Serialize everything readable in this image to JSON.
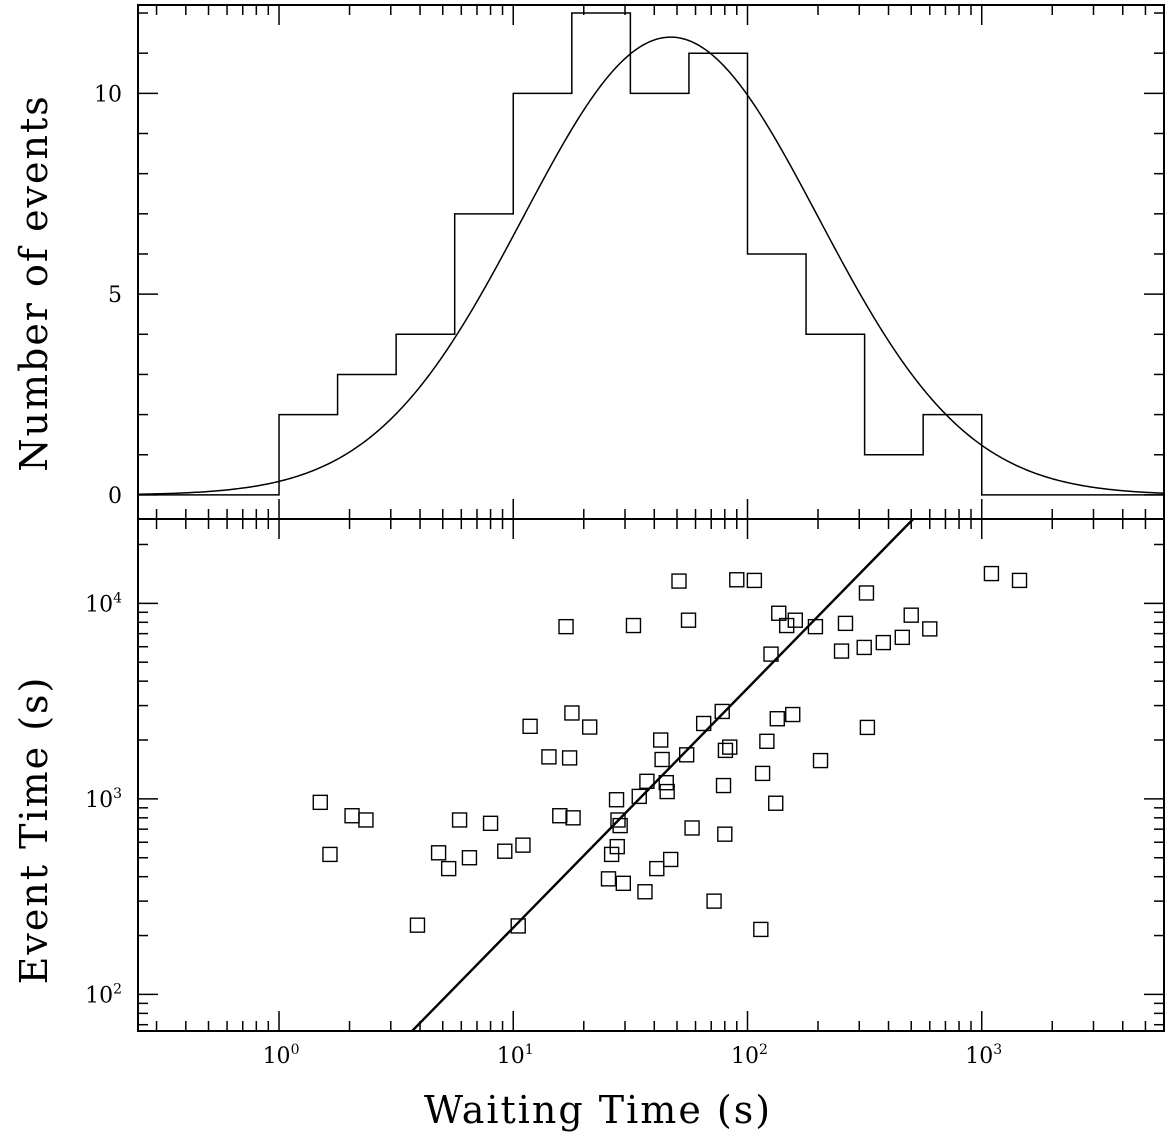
{
  "chart_data": [
    {
      "type": "histogram",
      "xscale": "log",
      "xlim": [
        0.25,
        6000
      ],
      "ylim": [
        -0.6,
        12.2
      ],
      "ylabel": "Number of events",
      "yticks": [
        0,
        5,
        10
      ],
      "ytick_labels": [
        "0",
        "5",
        "10"
      ],
      "bin_edges_log10": [
        -0.625,
        0,
        0.25,
        0.5,
        0.75,
        1.0,
        1.25,
        1.5,
        1.75,
        2.0,
        2.25,
        2.5,
        2.75,
        3.0,
        3.25,
        3.75
      ],
      "counts": [
        0,
        2,
        3,
        4,
        7,
        10,
        12,
        10,
        11,
        6,
        4,
        1,
        2,
        0,
        0
      ],
      "fit_curve": {
        "type": "lognormal",
        "peak_x": 47,
        "peak_count": 11.4,
        "sigma_log10": 0.63
      }
    },
    {
      "type": "scatter",
      "xscale": "log",
      "yscale": "log",
      "xlim": [
        0.25,
        6000
      ],
      "ylim": [
        65,
        27000
      ],
      "xlabel": "Waiting Time (s)",
      "ylabel": "Event Time (s)",
      "xticks": [
        {
          "base": "10",
          "exp": "0"
        },
        {
          "base": "10",
          "exp": "1"
        },
        {
          "base": "10",
          "exp": "2"
        },
        {
          "base": "10",
          "exp": "3"
        }
      ],
      "yticks": [
        {
          "base": "10",
          "exp": "2"
        },
        {
          "base": "10",
          "exp": "3"
        },
        {
          "base": "10",
          "exp": "4"
        }
      ],
      "fit_line": {
        "x": [
          3.7,
          510
        ],
        "y": [
          65,
          27000
        ]
      },
      "points": [
        [
          1.5,
          960
        ],
        [
          1.65,
          520
        ],
        [
          2.05,
          820
        ],
        [
          2.35,
          780
        ],
        [
          3.9,
          226
        ],
        [
          4.8,
          530
        ],
        [
          5.3,
          440
        ],
        [
          5.9,
          780
        ],
        [
          6.5,
          500
        ],
        [
          8.0,
          750
        ],
        [
          9.2,
          540
        ],
        [
          10.5,
          224
        ],
        [
          11.0,
          580
        ],
        [
          11.8,
          2350
        ],
        [
          14.2,
          1640
        ],
        [
          15.8,
          820
        ],
        [
          16.8,
          7600
        ],
        [
          17.4,
          1620
        ],
        [
          17.8,
          2750
        ],
        [
          18.0,
          800
        ],
        [
          21.2,
          2330
        ],
        [
          25.5,
          390
        ],
        [
          26.3,
          520
        ],
        [
          27.6,
          990
        ],
        [
          27.8,
          570
        ],
        [
          28.0,
          780
        ],
        [
          28.6,
          730
        ],
        [
          29.5,
          370
        ],
        [
          32.6,
          7700
        ],
        [
          34.5,
          1030
        ],
        [
          36.5,
          335
        ],
        [
          37.2,
          1230
        ],
        [
          41.0,
          440
        ],
        [
          42.6,
          2000
        ],
        [
          43.2,
          1590
        ],
        [
          45.0,
          1210
        ],
        [
          45.4,
          1090
        ],
        [
          47.0,
          490
        ],
        [
          51.0,
          13000
        ],
        [
          55.0,
          1680
        ],
        [
          56.0,
          8200
        ],
        [
          58.0,
          710
        ],
        [
          65.0,
          2430
        ],
        [
          72.0,
          300
        ],
        [
          78.0,
          2800
        ],
        [
          79.0,
          1170
        ],
        [
          80.0,
          660
        ],
        [
          80.5,
          1770
        ],
        [
          84.0,
          1840
        ],
        [
          90.0,
          13200
        ],
        [
          107.0,
          13100
        ],
        [
          114.0,
          215
        ],
        [
          116.0,
          1350
        ],
        [
          121.0,
          1970
        ],
        [
          126.0,
          5500
        ],
        [
          132.0,
          950
        ],
        [
          134.0,
          2570
        ],
        [
          136.0,
          8900
        ],
        [
          147.0,
          7700
        ],
        [
          156.0,
          2700
        ],
        [
          160.0,
          8200
        ],
        [
          205.0,
          1570
        ],
        [
          195.0,
          7600
        ],
        [
          252.0,
          5700
        ],
        [
          262.0,
          7900
        ],
        [
          315.0,
          5950
        ],
        [
          322.0,
          11300
        ],
        [
          325.0,
          2320
        ],
        [
          380.0,
          6300
        ],
        [
          458.0,
          6700
        ],
        [
          500.0,
          8700
        ],
        [
          600.0,
          7400
        ],
        [
          1100.0,
          14200
        ],
        [
          1450.0,
          13100
        ]
      ]
    }
  ]
}
